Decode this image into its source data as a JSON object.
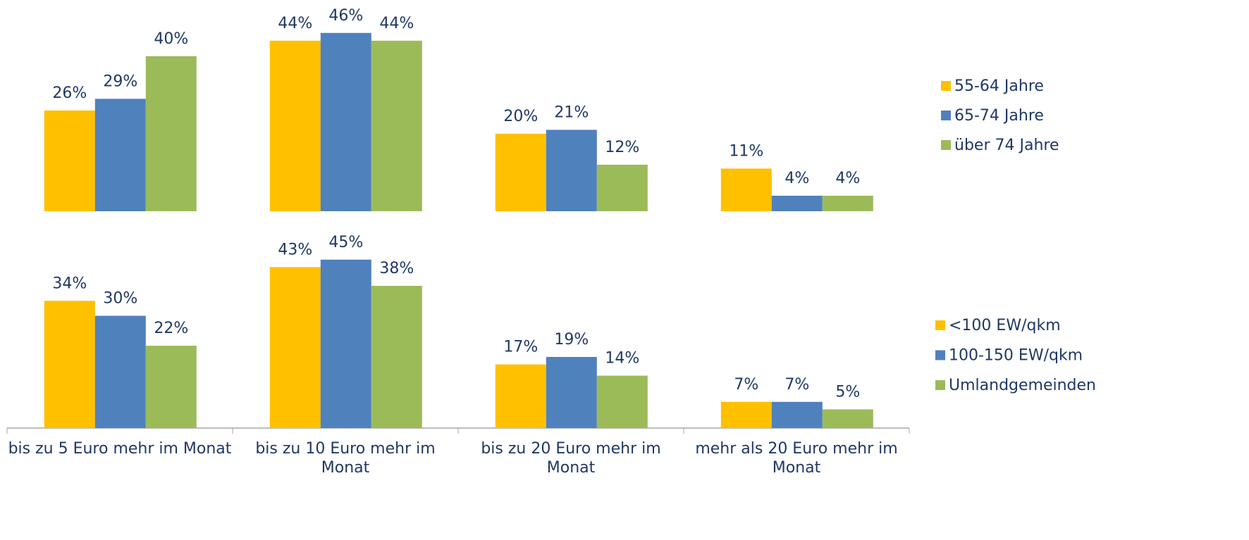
{
  "chart_data": [
    {
      "type": "bar",
      "categories": [
        null,
        null,
        null,
        null
      ],
      "series": [
        {
          "name": "55-64 Jahre",
          "color": "#ffc000",
          "values": [
            26,
            44,
            20,
            11
          ],
          "value_labels": [
            "26%",
            "44%",
            "20%",
            "11%"
          ]
        },
        {
          "name": "65-74 Jahre",
          "color": "#4f81bd",
          "values": [
            29,
            46,
            21,
            4
          ],
          "value_labels": [
            "29%",
            "46%",
            "21%",
            "4%"
          ]
        },
        {
          "name": "über 74 Jahre",
          "color": "#9bbb59",
          "values": [
            40,
            44,
            12,
            4
          ],
          "value_labels": [
            "40%",
            "44%",
            "12%",
            "4%"
          ]
        }
      ],
      "ylim": [
        0,
        54.5
      ]
    },
    {
      "type": "bar",
      "categories": [
        "bis zu 5 Euro mehr im Monat",
        "bis zu 10 Euro mehr im Monat",
        "bis zu 20 Euro mehr im Monat",
        "mehr als 20 Euro mehr im Monat"
      ],
      "series": [
        {
          "name": "<100 EW/qkm",
          "color": "#ffc000",
          "values": [
            34,
            43,
            17,
            7
          ],
          "value_labels": [
            "34%",
            "43%",
            "17%",
            "7%"
          ]
        },
        {
          "name": "100-150 EW/qkm",
          "color": "#4f81bd",
          "values": [
            30,
            45,
            19,
            7
          ],
          "value_labels": [
            "30%",
            "45%",
            "19%",
            "7%"
          ]
        },
        {
          "name": "Umlandgemeinden",
          "color": "#9bbb59",
          "values": [
            22,
            38,
            14,
            5
          ],
          "value_labels": [
            "22%",
            "38%",
            "14%",
            "5%"
          ]
        }
      ],
      "ylim": [
        0,
        57
      ]
    }
  ]
}
